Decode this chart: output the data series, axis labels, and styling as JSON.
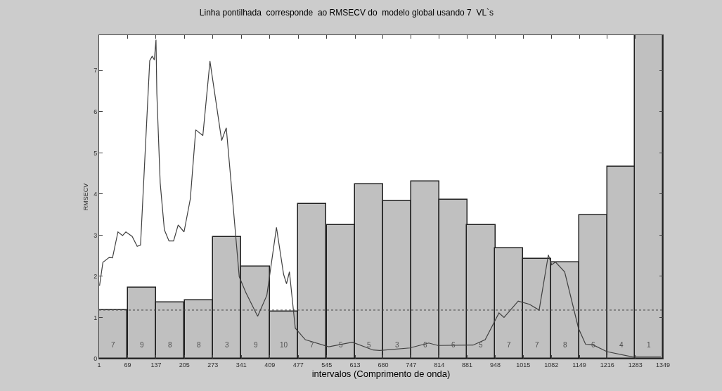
{
  "chart_data": {
    "type": "bar",
    "title": "Linha pontilhada  corresponde  ao RMSECV do  modelo global usando 7  VL`s",
    "xlabel": "intervalos (Comprimento de onda)",
    "ylabel": "RMSECV",
    "x": [
      35,
      103,
      171,
      239,
      307,
      375,
      443,
      511,
      579,
      646.5,
      713.5,
      780.5,
      847.5,
      914.5,
      981.5,
      1048.5,
      1115.5,
      1182.5,
      1249.5,
      1316
    ],
    "annotations": [
      "7",
      "9",
      "8",
      "8",
      "3",
      "9",
      "10",
      "7",
      "5",
      "5",
      "3",
      "6",
      "6",
      "5",
      "7",
      "7",
      "8",
      "6",
      "4",
      "1"
    ],
    "xlim": [
      1,
      1349
    ],
    "xticks": [
      1,
      69,
      137,
      205,
      273,
      341,
      409,
      477,
      545,
      613,
      680,
      747,
      814,
      881,
      948,
      1015,
      1082,
      1149,
      1216,
      1283,
      1349
    ],
    "ylim": [
      0,
      7.86
    ],
    "yticks": [
      0,
      1,
      2,
      3,
      4,
      5,
      6,
      7
    ],
    "series": [
      {
        "color": "#c0c0c0",
        "values": [
          1.18,
          1.72,
          1.37,
          1.41,
          2.95,
          2.24,
          1.14,
          3.76,
          3.24,
          4.23,
          3.83,
          4.3,
          3.86,
          3.24,
          2.69,
          2.43,
          2.34,
          3.49,
          4.66,
          7.86
        ]
      },
      {
        "type": "line",
        "color": "#404040",
        "x": [
          2,
          10,
          25,
          33,
          46,
          57,
          65,
          80,
          92,
          100,
          122,
          128,
          133,
          137,
          139,
          147,
          157,
          168,
          179,
          190,
          204,
          219,
          232,
          249,
          266,
          294,
          305,
          319,
          336,
          352,
          380,
          402,
          425,
          442,
          449,
          456,
          470,
          494,
          550,
          606,
          656,
          672,
          744,
          789,
          811,
          895,
          924,
          957,
          969,
          1003,
          1030,
          1053,
          1075,
          1083,
          1092,
          1114,
          1147,
          1164,
          1181,
          1215,
          1277,
          1344
        ],
        "values": [
          1.77,
          2.34,
          2.46,
          2.45,
          3.08,
          2.99,
          3.08,
          2.97,
          2.73,
          2.76,
          7.24,
          7.35,
          7.26,
          7.75,
          6.44,
          4.27,
          3.13,
          2.86,
          2.86,
          3.25,
          3.08,
          3.88,
          5.56,
          5.42,
          7.23,
          5.3,
          5.61,
          3.99,
          1.99,
          1.6,
          1.03,
          1.54,
          3.19,
          2.05,
          1.82,
          2.11,
          0.74,
          0.46,
          0.29,
          0.4,
          0.21,
          0.2,
          0.26,
          0.38,
          0.32,
          0.33,
          0.46,
          1.11,
          1.0,
          1.4,
          1.32,
          1.18,
          2.52,
          2.28,
          2.35,
          2.11,
          0.74,
          0.35,
          0.34,
          0.17,
          0.04,
          0.04
        ]
      }
    ],
    "ref_lines": [
      {
        "axis": "y",
        "value": 1.18,
        "line_style": "dotted",
        "color": "#404040"
      }
    ]
  }
}
